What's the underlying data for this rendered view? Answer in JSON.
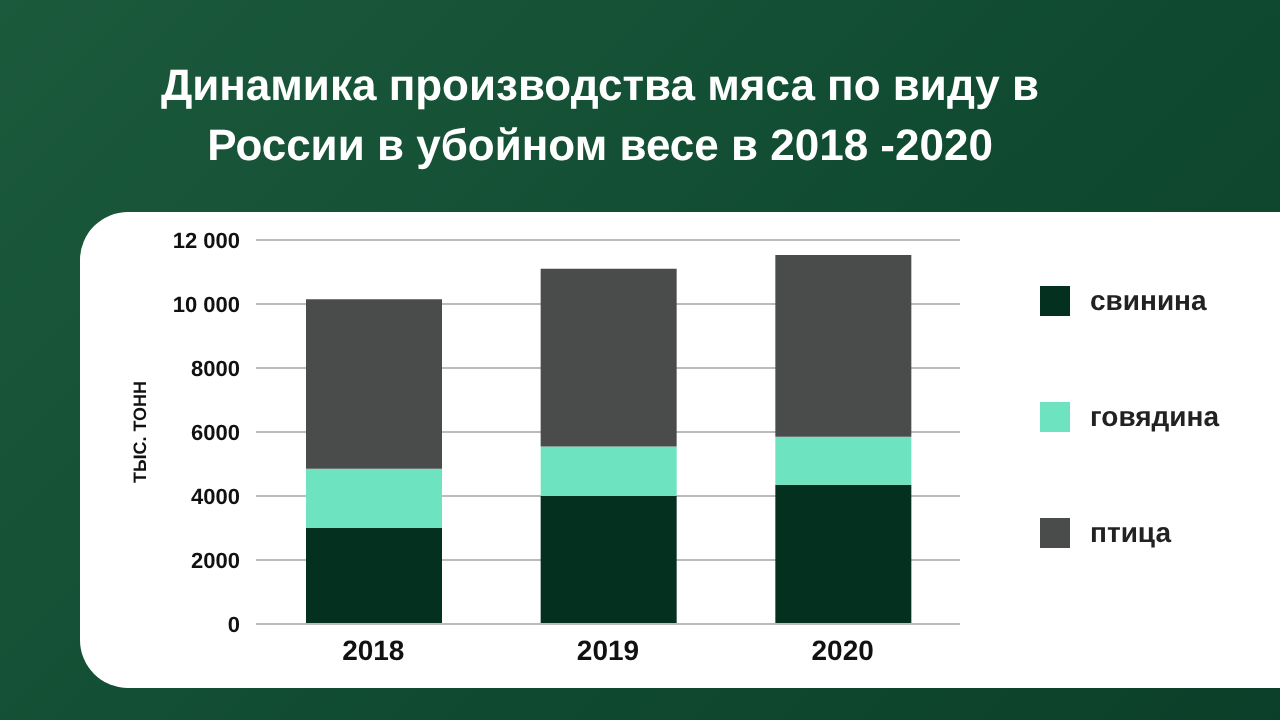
{
  "chart_data": {
    "type": "bar",
    "title": "Динамика производства мяса по виду в России в убойном весе в 2018 -2020",
    "ylabel": "ТЫС. ТОНН",
    "categories": [
      "2018",
      "2019",
      "2020"
    ],
    "stacked": true,
    "series": [
      {
        "name": "свинина",
        "color": "#04301f",
        "values": [
          3000,
          4000,
          4350
        ]
      },
      {
        "name": "говядина",
        "color": "#6de3bf",
        "values": [
          1850,
          1550,
          1500
        ]
      },
      {
        "name": "птица",
        "color": "#4a4c4c",
        "values": [
          5300,
          5550,
          5680
        ]
      }
    ],
    "ylim": [
      0,
      12000
    ],
    "yticks": [
      0,
      2000,
      4000,
      6000,
      8000,
      {
        "value": 10000,
        "label": "10 000"
      },
      {
        "value": 12000,
        "label": "12 000"
      }
    ],
    "grid": "y",
    "legend": "right"
  }
}
